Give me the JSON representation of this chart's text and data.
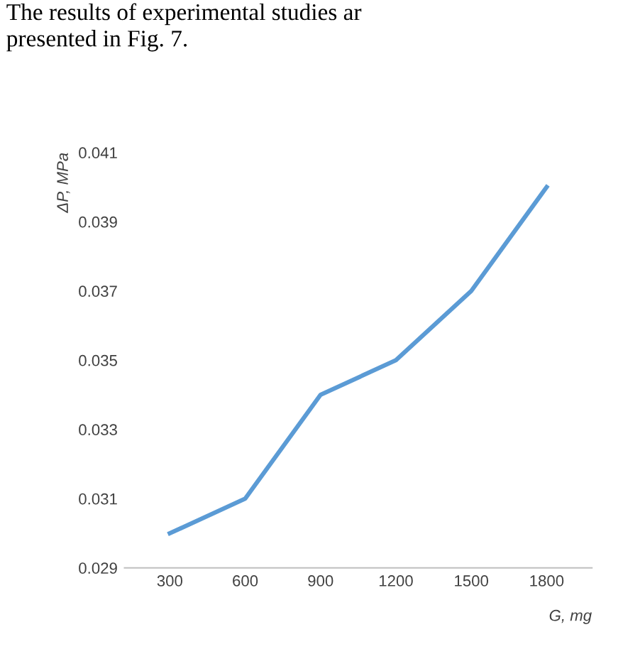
{
  "chart_data": {
    "type": "line",
    "annotations": [
      "The results of experimental studies ar\npresented in Fig. 7."
    ],
    "xlabel": "G, mg",
    "ylabel": "ΔP, MPa",
    "categories": [
      "300",
      "600",
      "900",
      "1200",
      "1500",
      "1800"
    ],
    "series": [
      {
        "color": "#5b9bd5",
        "values": [
          0.03,
          0.031,
          0.034,
          0.035,
          0.037,
          0.04
        ]
      }
    ],
    "ylim": [
      0.029,
      0.041
    ],
    "yticks": [
      0.029,
      0.031,
      0.033,
      0.035,
      0.037,
      0.039,
      0.041
    ],
    "grid": false,
    "legend": false
  }
}
